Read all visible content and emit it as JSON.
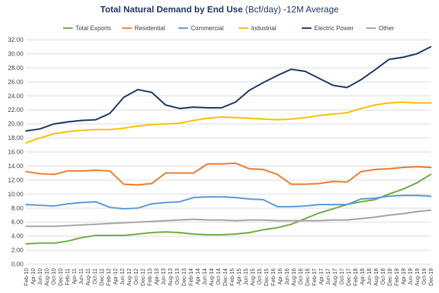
{
  "chart_data": {
    "type": "line",
    "title_main": "Total Natural Demand by End Use",
    "title_unit": "(Bcf/day) -12M Average",
    "xlabel": "",
    "ylabel": "",
    "ylim": [
      0,
      32
    ],
    "yticks": [
      "0.00",
      "2.00",
      "4.00",
      "6.00",
      "8.00",
      "10.00",
      "12.00",
      "14.00",
      "16.00",
      "18.00",
      "20.00",
      "22.00",
      "24.00",
      "26.00",
      "28.00",
      "30.00",
      "32.00"
    ],
    "grid": true,
    "legend_position": "top",
    "x": [
      "Feb-10",
      "Jun-10",
      "Oct-10",
      "Feb-11",
      "Jun-11",
      "Oct-11",
      "Feb-12",
      "Jun-12",
      "Oct-12",
      "Feb-13",
      "Jun-13",
      "Oct-13",
      "Feb-14",
      "Jun-14",
      "Oct-14",
      "Feb-15",
      "Jun-15",
      "Oct-15",
      "Feb-16",
      "Jun-16",
      "Oct-16",
      "Feb-17",
      "Jun-17",
      "Oct-17",
      "Feb-18",
      "Jun-18",
      "Oct-18",
      "Feb-19",
      "Jun-19",
      "Oct-19"
    ],
    "xticks": [
      "Feb-10",
      "Apr-10",
      "Jun-10",
      "Aug-10",
      "Oct-10",
      "Dec-10",
      "Feb-11",
      "Apr-11",
      "Jun-11",
      "Aug-11",
      "Oct-11",
      "Dec-11",
      "Feb-12",
      "Apr-12",
      "Jun-12",
      "Aug-12",
      "Oct-12",
      "Dec-12",
      "Feb-13",
      "Apr-13",
      "Jun-13",
      "Aug-13",
      "Oct-13",
      "Dec-13",
      "Feb-14",
      "Apr-14",
      "Jun-14",
      "Aug-14",
      "Oct-14",
      "Dec-14",
      "Feb-15",
      "Apr-15",
      "Jun-15",
      "Aug-15",
      "Oct-15",
      "Dec-15",
      "Feb-16",
      "Apr-16",
      "Jun-16",
      "Aug-16",
      "Oct-16",
      "Dec-16",
      "Feb-17",
      "Apr-17",
      "Jun-17",
      "Aug-17",
      "Oct-17",
      "Dec-17",
      "Feb-18",
      "Apr-18",
      "Jun-18",
      "Aug-18",
      "Oct-18",
      "Dec-18",
      "Feb-19",
      "Apr-19",
      "Jun-19",
      "Aug-19",
      "Oct-19",
      "Dec-19"
    ],
    "series": [
      {
        "name": "Total Exports",
        "color": "#70ad47",
        "values": [
          2.9,
          3.0,
          3.0,
          3.3,
          3.8,
          4.1,
          4.1,
          4.1,
          4.3,
          4.5,
          4.6,
          4.5,
          4.3,
          4.2,
          4.2,
          4.3,
          4.5,
          4.9,
          5.2,
          5.7,
          6.5,
          7.3,
          7.9,
          8.5,
          8.9,
          9.2,
          10.0,
          10.7,
          11.6,
          12.8
        ]
      },
      {
        "name": "Residential",
        "color": "#ed7d31",
        "values": [
          13.2,
          12.9,
          12.8,
          13.3,
          13.3,
          13.4,
          13.3,
          11.4,
          11.3,
          11.5,
          13.0,
          13.0,
          13.0,
          14.3,
          14.3,
          14.4,
          13.6,
          13.5,
          12.8,
          11.4,
          11.4,
          11.5,
          11.8,
          11.7,
          13.2,
          13.5,
          13.6,
          13.8,
          13.9,
          13.8
        ]
      },
      {
        "name": "Commercial",
        "color": "#5b9bd5",
        "values": [
          8.5,
          8.4,
          8.3,
          8.6,
          8.8,
          8.9,
          8.1,
          7.9,
          8.0,
          8.6,
          8.8,
          8.9,
          9.5,
          9.6,
          9.6,
          9.5,
          9.3,
          9.2,
          8.2,
          8.2,
          8.3,
          8.5,
          8.5,
          8.5,
          9.3,
          9.4,
          9.7,
          9.8,
          9.8,
          9.7
        ]
      },
      {
        "name": "Industrial",
        "color": "#ffc000",
        "values": [
          17.3,
          18.0,
          18.6,
          18.9,
          19.1,
          19.2,
          19.2,
          19.4,
          19.7,
          19.9,
          20.0,
          20.1,
          20.5,
          20.8,
          21.0,
          20.9,
          20.8,
          20.7,
          20.6,
          20.7,
          20.9,
          21.2,
          21.4,
          21.6,
          22.2,
          22.7,
          23.0,
          23.1,
          23.0,
          23.0
        ]
      },
      {
        "name": "Electric Power",
        "color": "#1f3864",
        "values": [
          19.0,
          19.3,
          20.0,
          20.3,
          20.5,
          20.6,
          21.5,
          23.8,
          24.9,
          24.5,
          22.7,
          22.2,
          22.4,
          22.3,
          22.3,
          23.1,
          24.8,
          25.9,
          26.9,
          27.8,
          27.5,
          26.5,
          25.5,
          25.2,
          26.3,
          27.7,
          29.2,
          29.5,
          30.0,
          31.0
        ]
      },
      {
        "name": "Other",
        "color": "#a5a5a5",
        "values": [
          5.4,
          5.4,
          5.4,
          5.5,
          5.6,
          5.7,
          5.8,
          5.9,
          6.0,
          6.1,
          6.2,
          6.3,
          6.4,
          6.3,
          6.3,
          6.2,
          6.3,
          6.3,
          6.2,
          6.2,
          6.2,
          6.2,
          6.3,
          6.3,
          6.5,
          6.7,
          7.0,
          7.2,
          7.5,
          7.7
        ]
      }
    ]
  }
}
